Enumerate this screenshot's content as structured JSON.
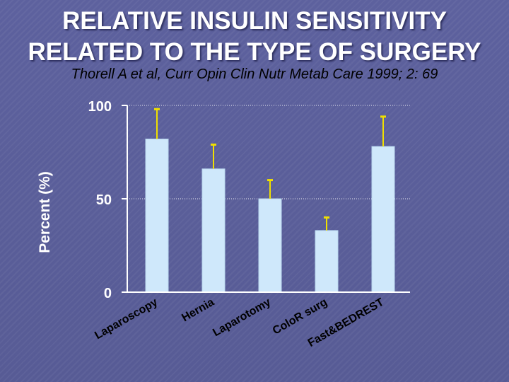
{
  "title_line1": "RELATIVE INSULIN SENSITIVITY",
  "title_line2": "RELATED TO THE TYPE OF SURGERY",
  "subtitle": "Thorell A et al, Curr Opin Clin Nutr Metab Care 1999; 2: 69",
  "colors": {
    "bar_fill": "#cfe8fb",
    "bar_edge": "#b8d6ee",
    "error_bar": "#f0e000",
    "axis": "#ffffff",
    "axis_text": "#ffffff",
    "gridline": "#ffffff"
  },
  "chart_data": {
    "type": "bar",
    "title": "",
    "xlabel": "",
    "ylabel": "Percent (%)",
    "ylim": [
      0,
      100
    ],
    "yticks": [
      0,
      50,
      100
    ],
    "grid": "dotted horizontal lines at 50 and 100",
    "categories": [
      "Laparoscopy",
      "Hernia",
      "Laparotomy",
      "ColoR surg",
      "Fast&BEDREST"
    ],
    "values": [
      82,
      66,
      50,
      33,
      78
    ],
    "error_upper": [
      98,
      79,
      60,
      40,
      94
    ]
  }
}
